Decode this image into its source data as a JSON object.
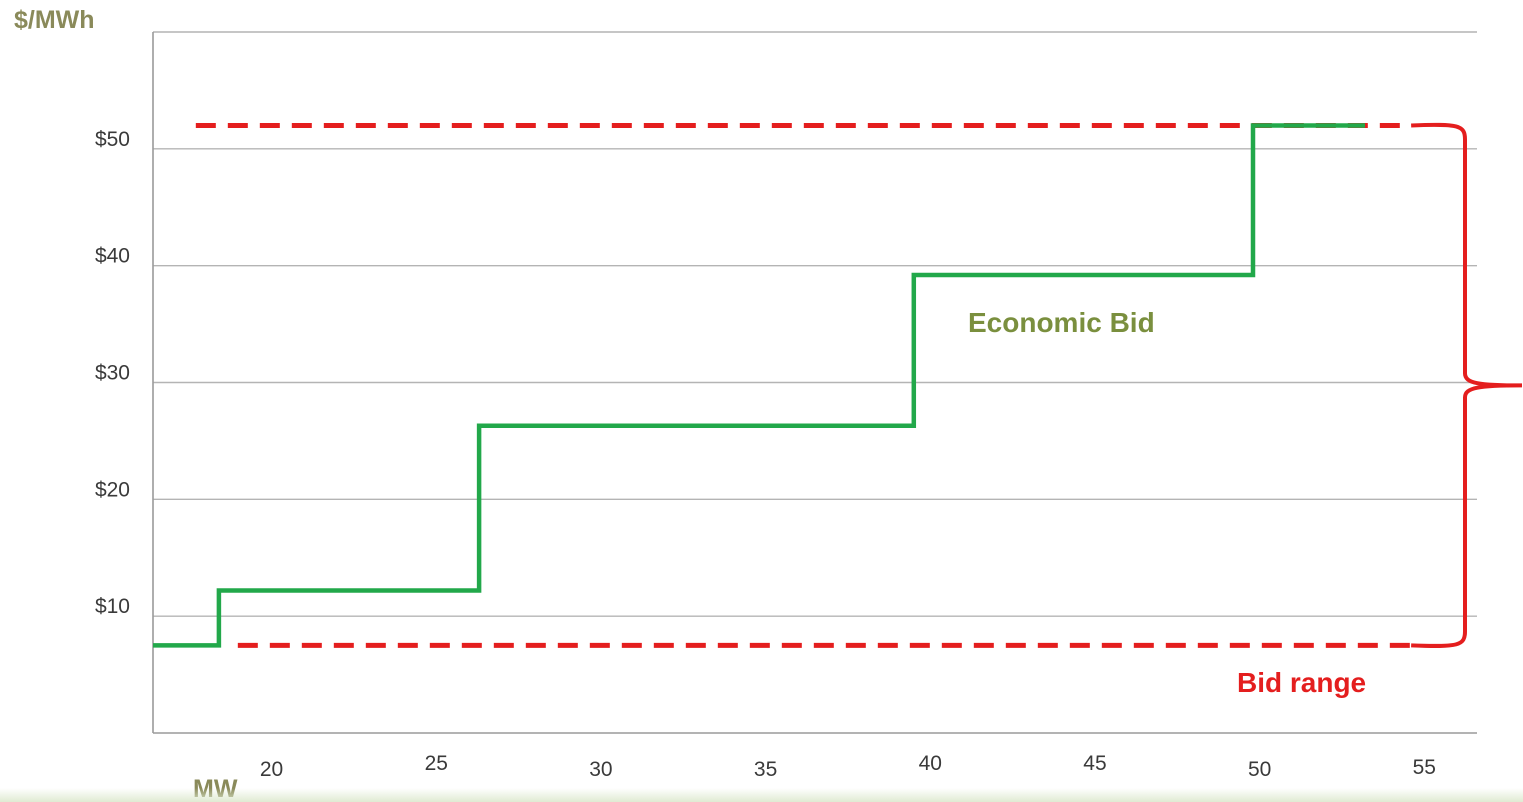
{
  "chart_data": {
    "type": "line",
    "title": "",
    "xlabel": "MW",
    "ylabel": "$/MWh",
    "xlim": [
      16.4,
      56.6
    ],
    "ylim": [
      0,
      60
    ],
    "x_ticks": [
      20,
      25,
      30,
      35,
      40,
      45,
      50,
      55
    ],
    "y_ticks": [
      10,
      20,
      30,
      40,
      50
    ],
    "y_tick_labels": [
      "$10",
      "$20",
      "$30",
      "$40",
      "$50"
    ],
    "grid": true,
    "series": [
      {
        "name": "Economic Bid",
        "color": "#22a84a",
        "style": "step",
        "x": [
          16.4,
          18.4,
          18.4,
          26.3,
          26.3,
          39.5,
          39.5,
          49.8,
          49.8,
          53.2
        ],
        "y": [
          7.5,
          7.5,
          12.2,
          12.2,
          26.3,
          26.3,
          39.2,
          39.2,
          52,
          52
        ]
      }
    ],
    "bid_range": {
      "label": "Bid range",
      "color": "#e41e1e",
      "upper": 52,
      "lower": 7.5,
      "x_start": 17.7,
      "x_end": 54.6
    },
    "annotations": [
      {
        "text": "Economic Bid",
        "color": "#7a8f3e"
      },
      {
        "text": "Bid range",
        "color": "#e41e1e"
      }
    ],
    "axis_label_color": "#8a8a5a"
  }
}
